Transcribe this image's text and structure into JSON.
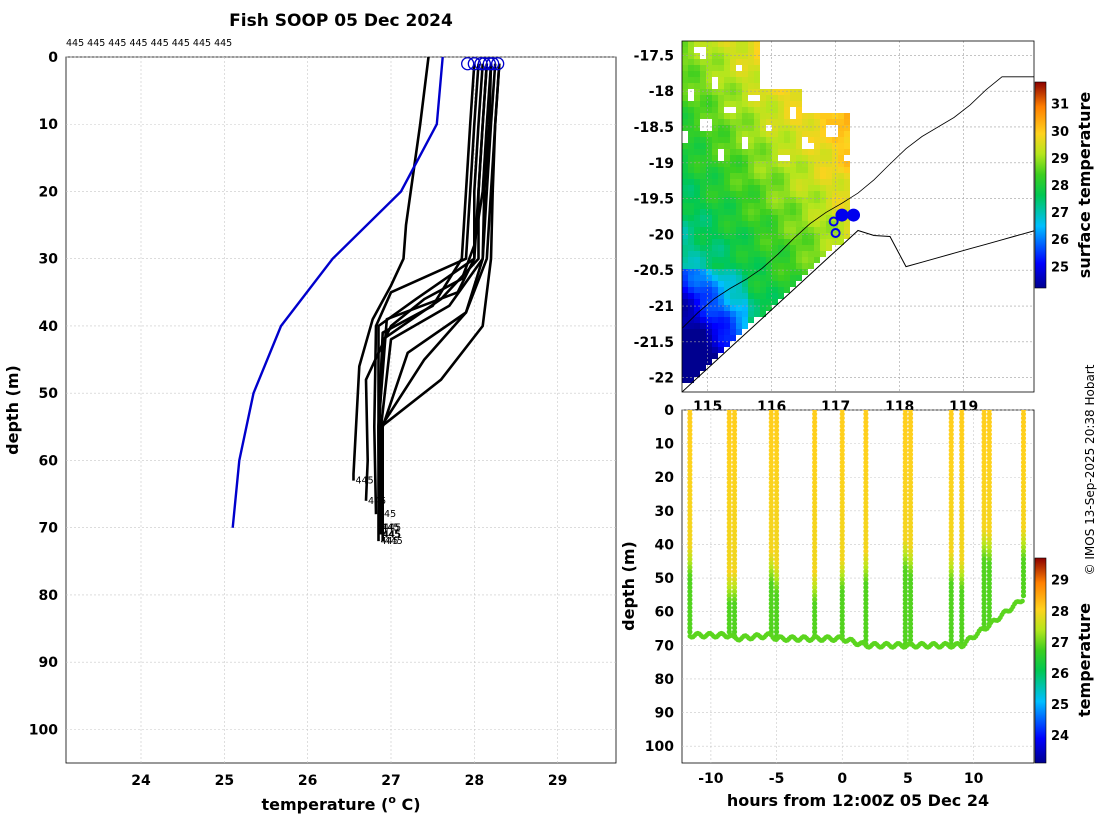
{
  "chart_data": [
    {
      "type": "line",
      "title": "Fish SOOP 05 Dec 2024",
      "xlabel": "temperature (",
      "xlabel_sup": "o",
      "xlabel_end": " C)",
      "ylabel": "depth (m)",
      "xlim": [
        23.1,
        29.7
      ],
      "ylim": [
        105,
        0
      ],
      "xticks": [
        24,
        25,
        26,
        27,
        28,
        29
      ],
      "yticks": [
        0,
        10,
        20,
        30,
        40,
        50,
        60,
        70,
        80,
        90,
        100
      ],
      "grid": true,
      "top_labels": "445 445 445 445 445 445 445 445",
      "profile_id_label": "445",
      "line_color": "#000000",
      "climatology_color": "#0000cc",
      "climatology": {
        "name": "",
        "temperature": [
          27.62,
          27.55,
          27.12,
          26.3,
          25.68,
          25.35,
          25.18,
          25.1
        ],
        "depth": [
          0,
          10,
          20,
          30,
          40,
          50,
          60,
          70
        ]
      },
      "profiles": [
        {
          "temperature": [
            27.45,
            27.35,
            27.18,
            27.15,
            27.0,
            26.78,
            26.62,
            26.55,
            26.55
          ],
          "depth": [
            0,
            10,
            25,
            30,
            34,
            39,
            46,
            62,
            63
          ]
        },
        {
          "temperature": [
            28.2,
            28.15,
            28.1,
            28.0,
            27.85,
            27.4,
            27.0,
            26.7,
            26.72,
            26.7
          ],
          "depth": [
            1,
            10,
            20,
            28,
            33,
            36,
            40,
            48,
            60,
            66
          ]
        },
        {
          "temperature": [
            28.05,
            28.0,
            27.95,
            27.9,
            27.0,
            26.82,
            26.8,
            26.82
          ],
          "depth": [
            1,
            10,
            20,
            30,
            35,
            40,
            55,
            68
          ]
        },
        {
          "temperature": [
            28.15,
            28.1,
            28.05,
            28.05,
            27.6,
            26.9,
            26.86,
            26.88
          ],
          "depth": [
            1,
            10,
            20,
            30,
            36,
            42,
            55,
            70
          ]
        },
        {
          "temperature": [
            28.25,
            28.2,
            28.15,
            28.1,
            27.7,
            27.0,
            26.88,
            26.88
          ],
          "depth": [
            1,
            10,
            20,
            30,
            37,
            42,
            55,
            71
          ]
        },
        {
          "temperature": [
            28.3,
            28.25,
            28.2,
            28.15,
            27.9,
            27.2,
            26.9,
            26.9
          ],
          "depth": [
            1,
            10,
            20,
            30,
            38,
            44,
            55,
            72
          ]
        },
        {
          "temperature": [
            28.1,
            28.05,
            28.0,
            28.0,
            27.8,
            26.95,
            26.85,
            26.86
          ],
          "depth": [
            1,
            10,
            20,
            30,
            35,
            39,
            55,
            70
          ]
        },
        {
          "temperature": [
            28.2,
            28.18,
            28.12,
            28.1,
            27.9,
            27.4,
            26.88,
            26.87
          ],
          "depth": [
            1,
            10,
            20,
            30,
            38,
            45,
            55,
            71
          ]
        },
        {
          "temperature": [
            28.0,
            27.95,
            27.9,
            27.85,
            27.5,
            26.9,
            26.85,
            26.86
          ],
          "depth": [
            1,
            10,
            20,
            30,
            37,
            41,
            55,
            70
          ]
        },
        {
          "temperature": [
            28.3,
            28.25,
            28.22,
            28.2,
            28.1,
            27.6,
            26.88,
            26.87
          ],
          "depth": [
            1,
            10,
            20,
            30,
            40,
            48,
            55,
            71
          ]
        },
        {
          "temperature": [
            28.15,
            28.1,
            28.05,
            28.0,
            27.3,
            26.85,
            26.85
          ],
          "depth": [
            1,
            10,
            20,
            30,
            36,
            40,
            72
          ]
        }
      ],
      "start_circles": [
        27.92,
        28.0,
        28.08,
        28.12,
        28.18,
        28.22,
        28.28
      ]
    },
    {
      "type": "heatmap",
      "title": "",
      "xlabel": "",
      "ylabel": "",
      "ylim": [
        -22.2,
        -17.3
      ],
      "xlim": [
        114.6,
        120.1
      ],
      "yticks": [
        -17.5,
        -18,
        -18.5,
        -19,
        -19.5,
        -20,
        -20.5,
        -21,
        -21.5,
        -22
      ],
      "xticks": [
        115,
        116,
        117,
        118,
        119
      ],
      "xtick_labels_visible": [
        "115",
        "116",
        "117",
        "118",
        "119"
      ],
      "grid": true,
      "colorbar": {
        "label": "surface temperature",
        "min": 24.2,
        "max": 31.8,
        "ticks": [
          25,
          26,
          27,
          28,
          29,
          30,
          31
        ]
      },
      "coastline_color": "#000000",
      "track_color": "#0000ee",
      "track_points": [
        {
          "lon": 116.97,
          "lat": -19.82
        },
        {
          "lon": 117.0,
          "lat": -19.98
        },
        {
          "lon": 117.1,
          "lat": -19.73
        },
        {
          "lon": 117.28,
          "lat": -19.73
        }
      ]
    },
    {
      "type": "scatter",
      "title": "",
      "xlabel": "hours from 12:00Z 05 Dec 24",
      "ylabel": "depth (m)",
      "xlim": [
        -12.2,
        14.6
      ],
      "ylim": [
        105,
        0
      ],
      "xticks": [
        -10,
        -5,
        0,
        5,
        10
      ],
      "yticks": [
        0,
        10,
        20,
        30,
        40,
        50,
        60,
        70,
        80,
        90,
        100
      ],
      "grid": true,
      "colorbar": {
        "label": "temperature",
        "min": 23.1,
        "max": 29.7,
        "ticks": [
          24,
          25,
          26,
          27,
          28,
          29
        ]
      },
      "casts": [
        {
          "hour": -11.6,
          "bottom": 67,
          "thermocline": 40
        },
        {
          "hour": -8.6,
          "bottom": 67,
          "thermocline": 48
        },
        {
          "hour": -8.2,
          "bottom": 68,
          "thermocline": 48
        },
        {
          "hour": -5.4,
          "bottom": 67,
          "thermocline": 42
        },
        {
          "hour": -5.0,
          "bottom": 68,
          "thermocline": 45
        },
        {
          "hour": -2.1,
          "bottom": 68,
          "thermocline": 48
        },
        {
          "hour": 0.0,
          "bottom": 68,
          "thermocline": 44
        },
        {
          "hour": 1.8,
          "bottom": 70,
          "thermocline": 42
        },
        {
          "hour": 4.8,
          "bottom": 70,
          "thermocline": 38
        },
        {
          "hour": 5.2,
          "bottom": 70,
          "thermocline": 40
        },
        {
          "hour": 8.3,
          "bottom": 70,
          "thermocline": 42
        },
        {
          "hour": 9.1,
          "bottom": 70,
          "thermocline": 44
        },
        {
          "hour": 10.8,
          "bottom": 65,
          "thermocline": 35
        },
        {
          "hour": 11.2,
          "bottom": 64,
          "thermocline": 36
        },
        {
          "hour": 13.8,
          "bottom": 56,
          "thermocline": 35
        }
      ]
    }
  ],
  "credit": "© IMOS 13-Sep-2025 20:38 Hobart"
}
